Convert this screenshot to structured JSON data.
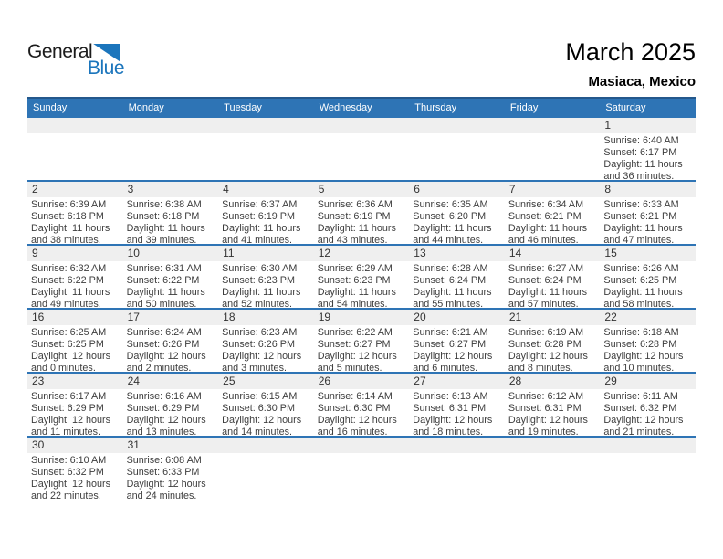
{
  "logo": {
    "part1": "General",
    "part2": "Blue",
    "accent_color": "#1b75bc"
  },
  "header": {
    "title": "March 2025",
    "subtitle": "Masiaca, Mexico"
  },
  "colors": {
    "weekday_bar": "#2e74b5",
    "weekday_bar_top_border": "#24588c",
    "week_divider": "#2e74b5",
    "day_strip": "#efefef"
  },
  "labels": {
    "sunrise": "Sunrise:",
    "sunset": "Sunset:",
    "daylight": "Daylight:"
  },
  "weekdays": [
    "Sunday",
    "Monday",
    "Tuesday",
    "Wednesday",
    "Thursday",
    "Friday",
    "Saturday"
  ],
  "weeks": [
    [
      null,
      null,
      null,
      null,
      null,
      null,
      {
        "day": 1,
        "sunrise": "6:40 AM",
        "sunset": "6:17 PM",
        "daylight": "11 hours and 36 minutes."
      }
    ],
    [
      {
        "day": 2,
        "sunrise": "6:39 AM",
        "sunset": "6:18 PM",
        "daylight": "11 hours and 38 minutes."
      },
      {
        "day": 3,
        "sunrise": "6:38 AM",
        "sunset": "6:18 PM",
        "daylight": "11 hours and 39 minutes."
      },
      {
        "day": 4,
        "sunrise": "6:37 AM",
        "sunset": "6:19 PM",
        "daylight": "11 hours and 41 minutes."
      },
      {
        "day": 5,
        "sunrise": "6:36 AM",
        "sunset": "6:19 PM",
        "daylight": "11 hours and 43 minutes."
      },
      {
        "day": 6,
        "sunrise": "6:35 AM",
        "sunset": "6:20 PM",
        "daylight": "11 hours and 44 minutes."
      },
      {
        "day": 7,
        "sunrise": "6:34 AM",
        "sunset": "6:21 PM",
        "daylight": "11 hours and 46 minutes."
      },
      {
        "day": 8,
        "sunrise": "6:33 AM",
        "sunset": "6:21 PM",
        "daylight": "11 hours and 47 minutes."
      }
    ],
    [
      {
        "day": 9,
        "sunrise": "6:32 AM",
        "sunset": "6:22 PM",
        "daylight": "11 hours and 49 minutes."
      },
      {
        "day": 10,
        "sunrise": "6:31 AM",
        "sunset": "6:22 PM",
        "daylight": "11 hours and 50 minutes."
      },
      {
        "day": 11,
        "sunrise": "6:30 AM",
        "sunset": "6:23 PM",
        "daylight": "11 hours and 52 minutes."
      },
      {
        "day": 12,
        "sunrise": "6:29 AM",
        "sunset": "6:23 PM",
        "daylight": "11 hours and 54 minutes."
      },
      {
        "day": 13,
        "sunrise": "6:28 AM",
        "sunset": "6:24 PM",
        "daylight": "11 hours and 55 minutes."
      },
      {
        "day": 14,
        "sunrise": "6:27 AM",
        "sunset": "6:24 PM",
        "daylight": "11 hours and 57 minutes."
      },
      {
        "day": 15,
        "sunrise": "6:26 AM",
        "sunset": "6:25 PM",
        "daylight": "11 hours and 58 minutes."
      }
    ],
    [
      {
        "day": 16,
        "sunrise": "6:25 AM",
        "sunset": "6:25 PM",
        "daylight": "12 hours and 0 minutes."
      },
      {
        "day": 17,
        "sunrise": "6:24 AM",
        "sunset": "6:26 PM",
        "daylight": "12 hours and 2 minutes."
      },
      {
        "day": 18,
        "sunrise": "6:23 AM",
        "sunset": "6:26 PM",
        "daylight": "12 hours and 3 minutes."
      },
      {
        "day": 19,
        "sunrise": "6:22 AM",
        "sunset": "6:27 PM",
        "daylight": "12 hours and 5 minutes."
      },
      {
        "day": 20,
        "sunrise": "6:21 AM",
        "sunset": "6:27 PM",
        "daylight": "12 hours and 6 minutes."
      },
      {
        "day": 21,
        "sunrise": "6:19 AM",
        "sunset": "6:28 PM",
        "daylight": "12 hours and 8 minutes."
      },
      {
        "day": 22,
        "sunrise": "6:18 AM",
        "sunset": "6:28 PM",
        "daylight": "12 hours and 10 minutes."
      }
    ],
    [
      {
        "day": 23,
        "sunrise": "6:17 AM",
        "sunset": "6:29 PM",
        "daylight": "12 hours and 11 minutes."
      },
      {
        "day": 24,
        "sunrise": "6:16 AM",
        "sunset": "6:29 PM",
        "daylight": "12 hours and 13 minutes."
      },
      {
        "day": 25,
        "sunrise": "6:15 AM",
        "sunset": "6:30 PM",
        "daylight": "12 hours and 14 minutes."
      },
      {
        "day": 26,
        "sunrise": "6:14 AM",
        "sunset": "6:30 PM",
        "daylight": "12 hours and 16 minutes."
      },
      {
        "day": 27,
        "sunrise": "6:13 AM",
        "sunset": "6:31 PM",
        "daylight": "12 hours and 18 minutes."
      },
      {
        "day": 28,
        "sunrise": "6:12 AM",
        "sunset": "6:31 PM",
        "daylight": "12 hours and 19 minutes."
      },
      {
        "day": 29,
        "sunrise": "6:11 AM",
        "sunset": "6:32 PM",
        "daylight": "12 hours and 21 minutes."
      }
    ],
    [
      {
        "day": 30,
        "sunrise": "6:10 AM",
        "sunset": "6:32 PM",
        "daylight": "12 hours and 22 minutes."
      },
      {
        "day": 31,
        "sunrise": "6:08 AM",
        "sunset": "6:33 PM",
        "daylight": "12 hours and 24 minutes."
      },
      null,
      null,
      null,
      null,
      null
    ]
  ]
}
